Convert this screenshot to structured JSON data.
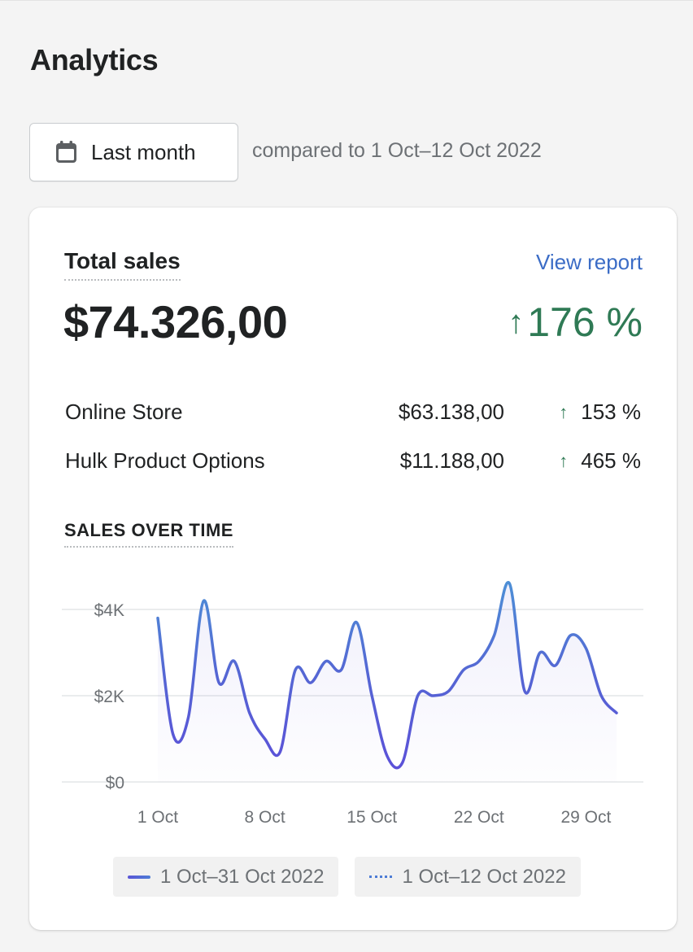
{
  "page": {
    "title": "Analytics"
  },
  "date_picker": {
    "label": "Last month",
    "icon": "calendar-icon"
  },
  "compare_text": "compared to 1 Oct–12 Oct 2022",
  "total_sales": {
    "title": "Total sales",
    "view_report_label": "View report",
    "value": "$74.326,00",
    "change": "176 %",
    "change_arrow": "↑",
    "positive_color": "#2f7a55",
    "link_color": "#3b6cc6"
  },
  "channels": [
    {
      "name": "Online Store",
      "amount": "$63.138,00",
      "change": "153 %",
      "arrow": "↑"
    },
    {
      "name": "Hulk Product Options",
      "amount": "$11.188,00",
      "change": "465 %",
      "arrow": "↑"
    }
  ],
  "sales_over_time": {
    "label": "SALES OVER TIME"
  },
  "chart_data": {
    "type": "line",
    "x_tick_labels": [
      "1 Oct",
      "8 Oct",
      "15 Oct",
      "22 Oct",
      "29 Oct"
    ],
    "y_tick_labels": [
      "$0",
      "$2K",
      "$4K"
    ],
    "ylim": [
      0,
      4000
    ],
    "grid": true,
    "legend": "bottom",
    "series": [
      {
        "name": "1 Oct–31 Oct 2022",
        "color": "#5a55d6",
        "style": "solid",
        "x": [
          "2022-10-01",
          "2022-10-02",
          "2022-10-03",
          "2022-10-04",
          "2022-10-05",
          "2022-10-06",
          "2022-10-07",
          "2022-10-08",
          "2022-10-09",
          "2022-10-10",
          "2022-10-11",
          "2022-10-12",
          "2022-10-13",
          "2022-10-14",
          "2022-10-15",
          "2022-10-16",
          "2022-10-17",
          "2022-10-18",
          "2022-10-19",
          "2022-10-20",
          "2022-10-21",
          "2022-10-22",
          "2022-10-23",
          "2022-10-24",
          "2022-10-25",
          "2022-10-26",
          "2022-10-27",
          "2022-10-28",
          "2022-10-29",
          "2022-10-30",
          "2022-10-31"
        ],
        "values": [
          3800,
          1100,
          1500,
          4200,
          2300,
          2800,
          1600,
          1000,
          700,
          2600,
          2300,
          2800,
          2600,
          3700,
          2000,
          600,
          450,
          2000,
          2000,
          2100,
          2600,
          2800,
          3400,
          4600,
          2100,
          3000,
          2700,
          3400,
          3100,
          2000,
          1600
        ]
      },
      {
        "name": "1 Oct–12 Oct 2022",
        "color": "#4e7dd6",
        "style": "dotted"
      }
    ]
  }
}
